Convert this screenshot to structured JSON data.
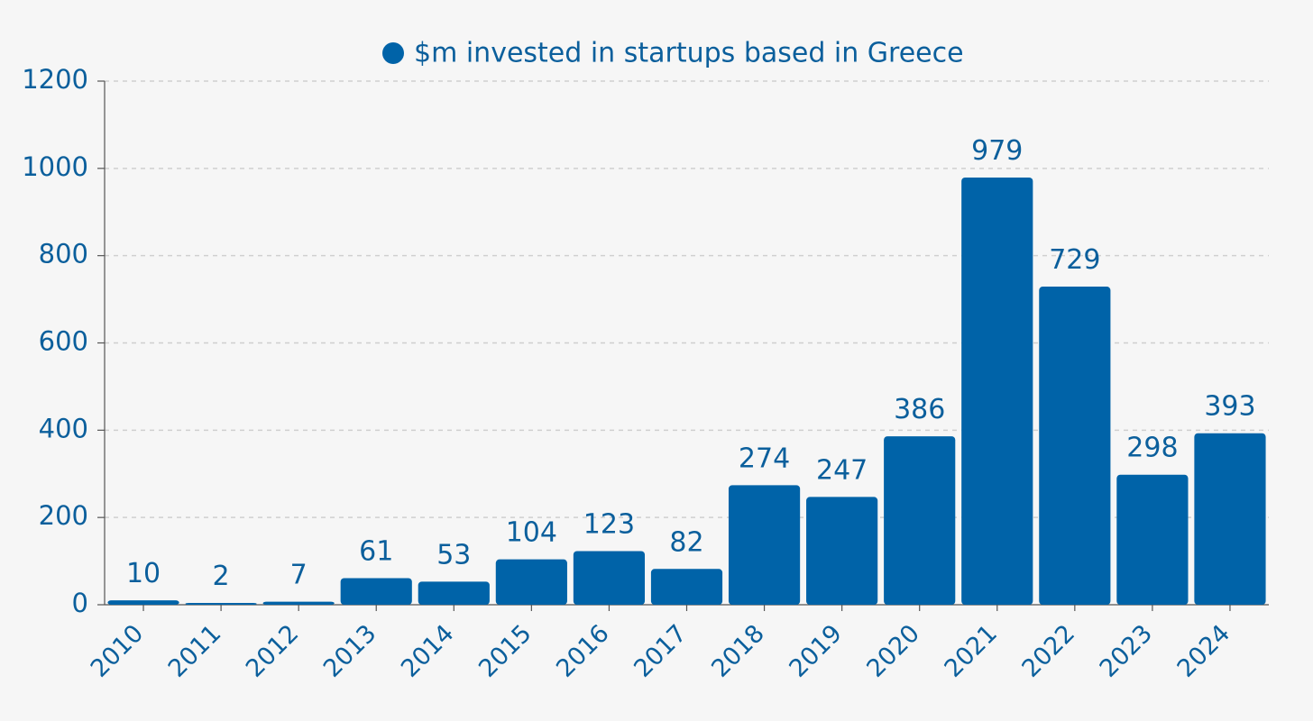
{
  "chart_data": {
    "type": "bar",
    "title": "",
    "xlabel": "",
    "ylabel": "",
    "categories": [
      "2010",
      "2011",
      "2012",
      "2013",
      "2014",
      "2015",
      "2016",
      "2017",
      "2018",
      "2019",
      "2020",
      "2021",
      "2022",
      "2023",
      "2024"
    ],
    "series": [
      {
        "name": "$m invested in startups based in Greece",
        "values": [
          10,
          2,
          7,
          61,
          53,
          104,
          123,
          82,
          274,
          247,
          386,
          979,
          729,
          298,
          393
        ],
        "color": "#0063a8"
      }
    ],
    "ylim": [
      0,
      1200
    ],
    "yticks": [
      0,
      200,
      400,
      600,
      800,
      1000,
      1200
    ],
    "grid": true,
    "legend_position": "top-center",
    "bar_color": "#0063a8",
    "label_color": "#0b5f9c",
    "axis_color": "#555555",
    "grid_color": "#cfcfcf",
    "background": "#f6f6f6"
  }
}
